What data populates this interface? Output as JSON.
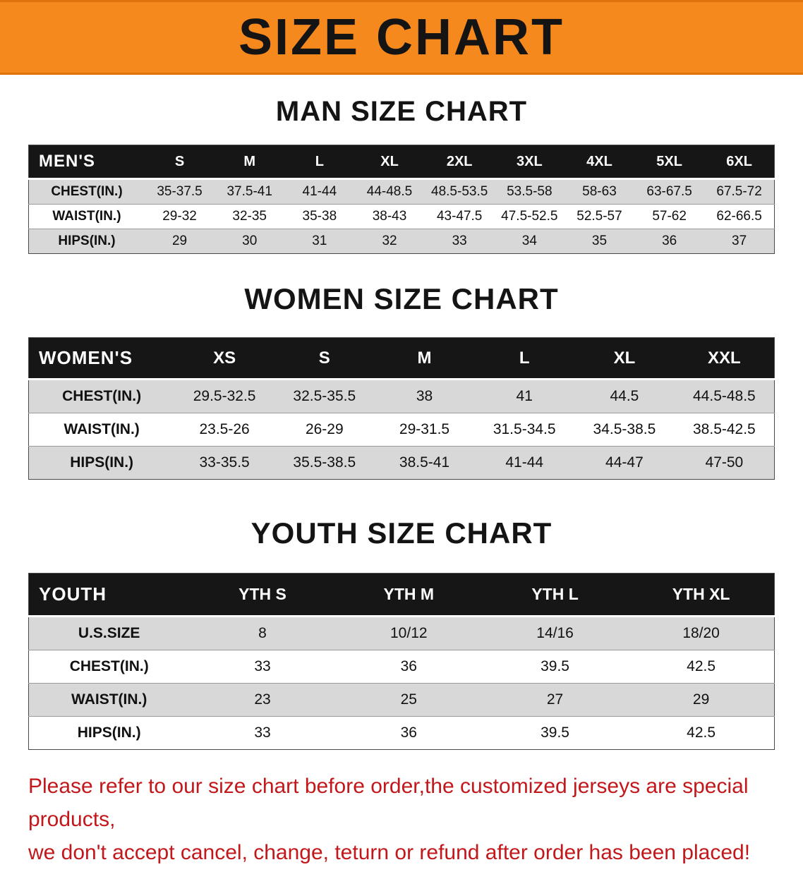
{
  "banner": {
    "title": "SIZE CHART",
    "bg_color": "#f6891d",
    "text_color": "#141414"
  },
  "chart_data": [
    {
      "type": "table",
      "title": "MAN SIZE CHART",
      "columns": [
        "MEN'S",
        "S",
        "M",
        "L",
        "XL",
        "2XL",
        "3XL",
        "4XL",
        "5XL",
        "6XL"
      ],
      "rows": [
        [
          "CHEST(IN.)",
          "35-37.5",
          "37.5-41",
          "41-44",
          "44-48.5",
          "48.5-53.5",
          "53.5-58",
          "58-63",
          "63-67.5",
          "67.5-72"
        ],
        [
          "WAIST(IN.)",
          "29-32",
          "32-35",
          "35-38",
          "38-43",
          "43-47.5",
          "47.5-52.5",
          "52.5-57",
          "57-62",
          "62-66.5"
        ],
        [
          "HIPS(IN.)",
          "29",
          "30",
          "31",
          "32",
          "33",
          "34",
          "35",
          "36",
          "37"
        ]
      ]
    },
    {
      "type": "table",
      "title": "WOMEN SIZE CHART",
      "columns": [
        "WOMEN'S",
        "XS",
        "S",
        "M",
        "L",
        "XL",
        "XXL"
      ],
      "rows": [
        [
          "CHEST(IN.)",
          "29.5-32.5",
          "32.5-35.5",
          "38",
          "41",
          "44.5",
          "44.5-48.5"
        ],
        [
          "WAIST(IN.)",
          "23.5-26",
          "26-29",
          "29-31.5",
          "31.5-34.5",
          "34.5-38.5",
          "38.5-42.5"
        ],
        [
          "HIPS(IN.)",
          "33-35.5",
          "35.5-38.5",
          "38.5-41",
          "41-44",
          "44-47",
          "47-50"
        ]
      ]
    },
    {
      "type": "table",
      "title": "YOUTH SIZE CHART",
      "columns": [
        "YOUTH",
        "YTH S",
        "YTH M",
        "YTH L",
        "YTH XL"
      ],
      "rows": [
        [
          "U.S.SIZE",
          "8",
          "10/12",
          "14/16",
          "18/20"
        ],
        [
          "CHEST(IN.)",
          "33",
          "36",
          "39.5",
          "42.5"
        ],
        [
          "WAIST(IN.)",
          "23",
          "25",
          "27",
          "29"
        ],
        [
          "HIPS(IN.)",
          "33",
          "36",
          "39.5",
          "42.5"
        ]
      ]
    }
  ],
  "footer_note": {
    "line1": "Please refer to our size chart before order,the customized jerseys are special products,",
    "line2": "we don't accept cancel, change, teturn or refund after order has been placed!",
    "color": "#c2181b"
  }
}
